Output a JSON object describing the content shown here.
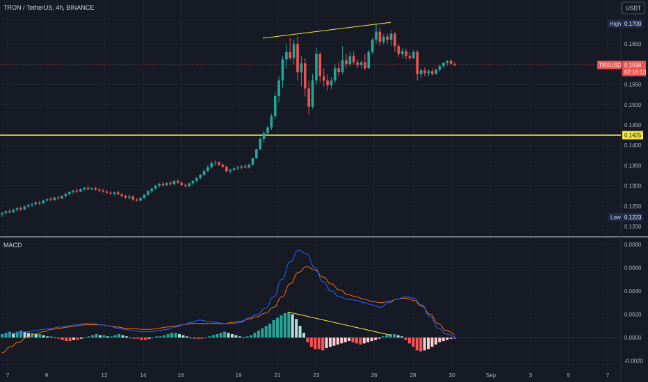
{
  "header": {
    "symbol_title": "TRON / TetherUS, 4h, BINANCE",
    "currency": "USDT"
  },
  "macd_panel": {
    "title": "MACD"
  },
  "price_tags": {
    "high_label": "High",
    "high_value": "0.1700",
    "low_label": "Low",
    "low_value": "0.1223",
    "symbol": "TRXUSDT",
    "last_price": "0.1598",
    "countdown": "02:16:13",
    "level_value": "0.1425"
  },
  "colors": {
    "background": "#161a25",
    "up": "#26a69a",
    "down": "#ef5350",
    "level_line": "#f5e642",
    "macd_line": "#2962ff",
    "signal_line": "#ff6d00",
    "hist_up_strong": "#26a69a",
    "hist_up_weak": "#b2dfdb",
    "hist_down_strong": "#ff5252",
    "hist_down_weak": "#ffcdd2"
  },
  "chart_data": [
    {
      "type": "candlestick",
      "title": "TRON / TetherUS, 4h, BINANCE",
      "price_axis": {
        "ticks": [
          "0.1700",
          "0.1650",
          "0.1600",
          "0.1550",
          "0.1500",
          "0.1450",
          "0.1400",
          "0.1350",
          "0.1300",
          "0.1250",
          "0.1200"
        ],
        "range": [
          0.1195,
          0.1745
        ]
      },
      "time_axis": {
        "ticks": [
          "7",
          "9",
          "12",
          "14",
          "16",
          "19",
          "21",
          "23",
          "26",
          "28",
          "30",
          "Sep",
          "3",
          "5",
          "7"
        ]
      },
      "horizontal_level": 0.1425,
      "high": 0.17,
      "low": 0.1223,
      "last": 0.1598,
      "trendline": {
        "from": {
          "day": "20.6",
          "price": 0.1664
        },
        "to": {
          "day": "26.4",
          "price": 0.1703
        }
      },
      "candles": [
        [
          0.123,
          0.1236,
          0.1224,
          0.1233
        ],
        [
          0.1233,
          0.124,
          0.1229,
          0.1237
        ],
        [
          0.1237,
          0.1243,
          0.1232,
          0.1235
        ],
        [
          0.1235,
          0.1244,
          0.1233,
          0.1241
        ],
        [
          0.1241,
          0.1248,
          0.1237,
          0.1245
        ],
        [
          0.1245,
          0.1249,
          0.1238,
          0.1242
        ],
        [
          0.1242,
          0.1251,
          0.124,
          0.1249
        ],
        [
          0.1249,
          0.1256,
          0.1245,
          0.1253
        ],
        [
          0.1253,
          0.1258,
          0.1248,
          0.1255
        ],
        [
          0.1255,
          0.1262,
          0.1251,
          0.1259
        ],
        [
          0.1259,
          0.1263,
          0.1253,
          0.1257
        ],
        [
          0.1257,
          0.1266,
          0.1255,
          0.1264
        ],
        [
          0.1264,
          0.127,
          0.126,
          0.1267
        ],
        [
          0.1267,
          0.1272,
          0.1262,
          0.1265
        ],
        [
          0.1265,
          0.1273,
          0.1263,
          0.1271
        ],
        [
          0.1271,
          0.1276,
          0.1266,
          0.1269
        ],
        [
          0.1269,
          0.1277,
          0.1267,
          0.1275
        ],
        [
          0.1275,
          0.1283,
          0.1271,
          0.128
        ],
        [
          0.128,
          0.1287,
          0.1276,
          0.1285
        ],
        [
          0.1285,
          0.1291,
          0.128,
          0.1288
        ],
        [
          0.1288,
          0.1293,
          0.1282,
          0.1286
        ],
        [
          0.1286,
          0.1294,
          0.1284,
          0.1292
        ],
        [
          0.1292,
          0.1297,
          0.1288,
          0.1295
        ],
        [
          0.1295,
          0.1299,
          0.1289,
          0.1292
        ],
        [
          0.1292,
          0.1297,
          0.1288,
          0.1294
        ],
        [
          0.1294,
          0.1298,
          0.1288,
          0.1291
        ],
        [
          0.1291,
          0.1295,
          0.1285,
          0.1288
        ],
        [
          0.1288,
          0.1293,
          0.1283,
          0.1286
        ],
        [
          0.1286,
          0.129,
          0.128,
          0.1283
        ],
        [
          0.1283,
          0.1288,
          0.1278,
          0.1281
        ],
        [
          0.1281,
          0.1286,
          0.1276,
          0.1284
        ],
        [
          0.1284,
          0.1288,
          0.1277,
          0.1279
        ],
        [
          0.1279,
          0.1283,
          0.1272,
          0.1275
        ],
        [
          0.1275,
          0.1279,
          0.1268,
          0.1271
        ],
        [
          0.1271,
          0.1278,
          0.1266,
          0.1274
        ],
        [
          0.1274,
          0.1277,
          0.1263,
          0.1266
        ],
        [
          0.1266,
          0.127,
          0.1261,
          0.1264
        ],
        [
          0.1264,
          0.1272,
          0.1261,
          0.127
        ],
        [
          0.127,
          0.128,
          0.1268,
          0.1278
        ],
        [
          0.1278,
          0.129,
          0.1275,
          0.1287
        ],
        [
          0.1287,
          0.1296,
          0.1282,
          0.1293
        ],
        [
          0.1293,
          0.1303,
          0.129,
          0.13
        ],
        [
          0.13,
          0.1308,
          0.1295,
          0.1305
        ],
        [
          0.1305,
          0.131,
          0.1298,
          0.1302
        ],
        [
          0.1302,
          0.1309,
          0.1299,
          0.1307
        ],
        [
          0.1307,
          0.1312,
          0.13,
          0.1304
        ],
        [
          0.1304,
          0.1315,
          0.1302,
          0.1312
        ],
        [
          0.1312,
          0.1316,
          0.1305,
          0.1308
        ],
        [
          0.1308,
          0.1311,
          0.13,
          0.1302
        ],
        [
          0.1302,
          0.1306,
          0.1296,
          0.1299
        ],
        [
          0.1299,
          0.1308,
          0.1297,
          0.1306
        ],
        [
          0.1306,
          0.1314,
          0.1302,
          0.1312
        ],
        [
          0.1312,
          0.1322,
          0.1309,
          0.1319
        ],
        [
          0.1319,
          0.133,
          0.1316,
          0.1327
        ],
        [
          0.1327,
          0.134,
          0.1324,
          0.1337
        ],
        [
          0.1337,
          0.135,
          0.1334,
          0.1346
        ],
        [
          0.1346,
          0.136,
          0.1343,
          0.1356
        ],
        [
          0.1356,
          0.1363,
          0.135,
          0.1358
        ],
        [
          0.1358,
          0.1361,
          0.1349,
          0.1352
        ],
        [
          0.1352,
          0.1356,
          0.1344,
          0.1347
        ],
        [
          0.1347,
          0.135,
          0.1333,
          0.1336
        ],
        [
          0.1336,
          0.1342,
          0.133,
          0.1339
        ],
        [
          0.1339,
          0.1346,
          0.1336,
          0.1343
        ],
        [
          0.1343,
          0.1349,
          0.1339,
          0.1345
        ],
        [
          0.1345,
          0.1351,
          0.134,
          0.1348
        ],
        [
          0.1348,
          0.1354,
          0.1343,
          0.1345
        ],
        [
          0.1345,
          0.1355,
          0.1343,
          0.1352
        ],
        [
          0.1352,
          0.137,
          0.135,
          0.1368
        ],
        [
          0.1368,
          0.1392,
          0.1366,
          0.139
        ],
        [
          0.139,
          0.142,
          0.1388,
          0.1416
        ],
        [
          0.1416,
          0.1435,
          0.1406,
          0.143
        ],
        [
          0.143,
          0.1448,
          0.1425,
          0.1444
        ],
        [
          0.1444,
          0.1478,
          0.1438,
          0.1472
        ],
        [
          0.1472,
          0.153,
          0.1465,
          0.1522
        ],
        [
          0.1522,
          0.157,
          0.1505,
          0.156
        ],
        [
          0.156,
          0.162,
          0.154,
          0.1612
        ],
        [
          0.1612,
          0.165,
          0.159,
          0.163
        ],
        [
          0.163,
          0.1665,
          0.161,
          0.1615
        ],
        [
          0.1615,
          0.166,
          0.16,
          0.165
        ],
        [
          0.165,
          0.1668,
          0.156,
          0.158
        ],
        [
          0.158,
          0.162,
          0.1545,
          0.1602
        ],
        [
          0.1602,
          0.1615,
          0.152,
          0.154
        ],
        [
          0.154,
          0.156,
          0.1475,
          0.1495
        ],
        [
          0.1495,
          0.1575,
          0.149,
          0.156
        ],
        [
          0.156,
          0.164,
          0.155,
          0.1625
        ],
        [
          0.1625,
          0.163,
          0.1555,
          0.157
        ],
        [
          0.157,
          0.159,
          0.1545,
          0.156
        ],
        [
          0.156,
          0.1575,
          0.1535,
          0.1548
        ],
        [
          0.1548,
          0.1568,
          0.1538,
          0.156
        ],
        [
          0.156,
          0.16,
          0.1555,
          0.159
        ],
        [
          0.159,
          0.1605,
          0.157,
          0.158
        ],
        [
          0.158,
          0.1645,
          0.1575,
          0.161
        ],
        [
          0.161,
          0.1625,
          0.159,
          0.16
        ],
        [
          0.16,
          0.163,
          0.1595,
          0.162
        ],
        [
          0.162,
          0.1632,
          0.16,
          0.1605
        ],
        [
          0.1605,
          0.1612,
          0.159,
          0.1598
        ],
        [
          0.1598,
          0.161,
          0.1588,
          0.1605
        ],
        [
          0.1605,
          0.1625,
          0.1585,
          0.159
        ],
        [
          0.159,
          0.1635,
          0.1588,
          0.163
        ],
        [
          0.163,
          0.1665,
          0.1625,
          0.166
        ],
        [
          0.166,
          0.17,
          0.165,
          0.168
        ],
        [
          0.168,
          0.169,
          0.1645,
          0.1655
        ],
        [
          0.1655,
          0.1675,
          0.1648,
          0.1668
        ],
        [
          0.1668,
          0.1675,
          0.165,
          0.166
        ],
        [
          0.166,
          0.1684,
          0.1645,
          0.1675
        ],
        [
          0.1675,
          0.168,
          0.163,
          0.1645
        ],
        [
          0.1645,
          0.165,
          0.1618,
          0.1625
        ],
        [
          0.1625,
          0.164,
          0.1615,
          0.1632
        ],
        [
          0.1632,
          0.1638,
          0.1612,
          0.162
        ],
        [
          0.162,
          0.163,
          0.161,
          0.1615
        ],
        [
          0.1615,
          0.1635,
          0.1612,
          0.163
        ],
        [
          0.163,
          0.1635,
          0.156,
          0.1575
        ],
        [
          0.1575,
          0.159,
          0.1565,
          0.1585
        ],
        [
          0.1585,
          0.1592,
          0.157,
          0.1578
        ],
        [
          0.1578,
          0.1588,
          0.157,
          0.1583
        ],
        [
          0.1583,
          0.159,
          0.1572,
          0.1576
        ],
        [
          0.1576,
          0.159,
          0.1574,
          0.1586
        ],
        [
          0.1586,
          0.1598,
          0.1582,
          0.1595
        ],
        [
          0.1595,
          0.1606,
          0.159,
          0.1603
        ],
        [
          0.1603,
          0.161,
          0.1596,
          0.1608
        ],
        [
          0.1608,
          0.1612,
          0.1598,
          0.1601
        ],
        [
          0.1601,
          0.1606,
          0.1594,
          0.1598
        ]
      ]
    },
    {
      "type": "macd",
      "title": "MACD",
      "y_axis": {
        "ticks": [
          "0.0080",
          "0.0060",
          "0.0040",
          "0.0020",
          "0.0000",
          "-0.0020"
        ],
        "range": [
          -0.0024,
          0.0088
        ]
      },
      "divergence_line": {
        "from_value": 0.0022,
        "to_value": 0.0002
      },
      "macd": [
        0.0002,
        0.0003,
        0.0004,
        0.0005,
        0.0006,
        0.0007,
        0.0008,
        0.0009,
        0.001,
        0.0011,
        0.0012,
        0.0012,
        0.0011,
        0.001,
        0.0008,
        0.0007,
        0.0006,
        0.0005,
        0.0005,
        0.0006,
        0.0007,
        0.0009,
        0.0011,
        0.0013,
        0.0015,
        0.0014,
        0.0013,
        0.0012,
        0.0012,
        0.0013,
        0.0017,
        0.002,
        0.0025,
        0.0035,
        0.005,
        0.0065,
        0.0075,
        0.0072,
        0.006,
        0.0048,
        0.004,
        0.0035,
        0.0033,
        0.0032,
        0.003,
        0.0028,
        0.0026,
        0.003,
        0.0033,
        0.0035,
        0.0034,
        0.0028,
        0.0018,
        0.0008,
        0.0003,
        0.0001
      ],
      "signal": [
        -0.0013,
        -0.0008,
        -0.0004,
        0.0,
        0.0003,
        0.0005,
        0.0007,
        0.0008,
        0.0009,
        0.001,
        0.0011,
        0.0011,
        0.0011,
        0.001,
        0.0009,
        0.0008,
        0.0008,
        0.0007,
        0.0007,
        0.0008,
        0.0009,
        0.001,
        0.0011,
        0.0012,
        0.0012,
        0.0012,
        0.0012,
        0.0012,
        0.0013,
        0.0014,
        0.0016,
        0.0018,
        0.0021,
        0.0026,
        0.0035,
        0.0046,
        0.0056,
        0.0061,
        0.0058,
        0.0052,
        0.0046,
        0.0041,
        0.0037,
        0.0035,
        0.0033,
        0.0031,
        0.003,
        0.0031,
        0.0033,
        0.0034,
        0.0032,
        0.0027,
        0.002,
        0.0012,
        0.0006,
        0.0003
      ],
      "histogram": [
        0.0003,
        0.0004,
        0.0005,
        0.0004,
        0.0005,
        0.0006,
        0.0005,
        0.0004,
        0.0004,
        0.0003,
        0.0003,
        0.0002,
        0.0001,
        0.0001,
        0.0,
        -0.0001,
        -0.0002,
        -0.0003,
        -0.0003,
        -0.0002,
        -0.0002,
        -0.0001,
        0.0,
        0.0001,
        0.0002,
        0.0003,
        0.0002,
        0.0002,
        0.0001,
        0.0001,
        0.0002,
        0.0003,
        0.0002,
        0.0001,
        0.0,
        -0.0001,
        -0.0001,
        -0.0002,
        -0.0002,
        -0.0001,
        0.0,
        0.0001,
        0.0001,
        0.0002,
        0.0003,
        0.0004,
        0.0004,
        0.0003,
        0.0002,
        0.0001,
        0.0,
        -0.0001,
        -0.0001,
        -0.0001,
        0.0,
        0.0001,
        0.0002,
        0.0003,
        0.0004,
        0.0005,
        0.0004,
        0.0003,
        0.0002,
        0.0001,
        0.0,
        0.0001,
        0.0002,
        0.0004,
        0.0006,
        0.0008,
        0.001,
        0.0012,
        0.0015,
        0.0017,
        0.0019,
        0.0021,
        0.0022,
        0.002,
        0.0016,
        0.001,
        0.0004,
        -0.0004,
        -0.0008,
        -0.001,
        -0.001,
        -0.0011,
        -0.0009,
        -0.0008,
        -0.0007,
        -0.0006,
        -0.0005,
        -0.0004,
        -0.0003,
        -0.0004,
        -0.0005,
        -0.0006,
        -0.0005,
        -0.0004,
        -0.0003,
        -0.0002,
        -0.0001,
        0.0001,
        0.0002,
        0.0003,
        0.0003,
        0.0002,
        0.0001,
        -0.0002,
        -0.0005,
        -0.0008,
        -0.0011,
        -0.0012,
        -0.0011,
        -0.001,
        -0.0008,
        -0.0006,
        -0.0004,
        -0.0003,
        -0.0002,
        -0.0001,
        -0.0001
      ]
    }
  ]
}
